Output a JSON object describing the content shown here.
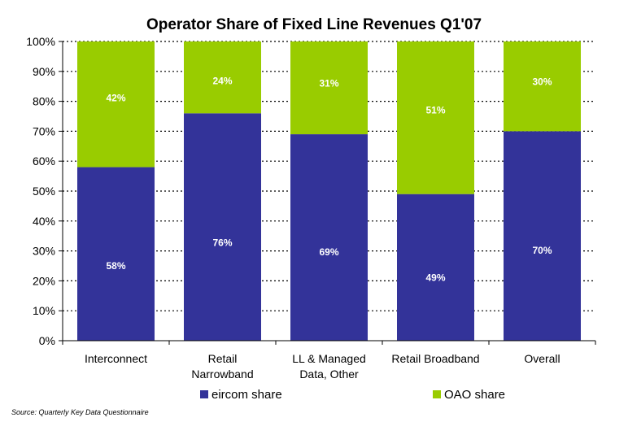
{
  "chart_data": {
    "type": "bar",
    "stacked": true,
    "title": "Operator Share of Fixed Line Revenues Q1'07",
    "categories": [
      "Interconnect",
      "Retail\nNarrowband",
      "LL & Managed\nData, Other",
      "Retail Broadband",
      "Overall"
    ],
    "series": [
      {
        "name": "eircom share",
        "color": "#333399",
        "values": [
          58,
          76,
          69,
          49,
          70
        ],
        "labels": [
          "58%",
          "76%",
          "69%",
          "49%",
          "70%"
        ]
      },
      {
        "name": "OAO share",
        "color": "#99CC00",
        "values": [
          42,
          24,
          31,
          51,
          30
        ],
        "labels": [
          "42%",
          "24%",
          "31%",
          "51%",
          "30%"
        ]
      }
    ],
    "yticks": [
      "0%",
      "10%",
      "20%",
      "30%",
      "40%",
      "50%",
      "60%",
      "70%",
      "80%",
      "90%",
      "100%"
    ],
    "ylim": [
      0,
      100
    ],
    "grid": true,
    "legend": "bottom"
  },
  "source": "Source:  Quarterly Key Data Questionnaire"
}
